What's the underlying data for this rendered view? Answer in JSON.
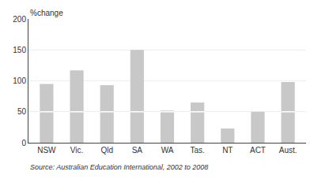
{
  "chart_data": {
    "type": "bar",
    "categories": [
      "NSW",
      "Vic.",
      "Qld",
      "SA",
      "WA",
      "Tas.",
      "NT",
      "ACT",
      "Aust."
    ],
    "values": [
      95,
      117,
      93,
      150,
      52,
      65,
      23,
      50,
      98
    ],
    "lower_segment": [
      50,
      50,
      50,
      50,
      50,
      50,
      23,
      50,
      50
    ],
    "color": "#c8c8c8",
    "line_color": "#ffffff",
    "ylabel": "%change",
    "annotations": [
      "Source: Australian Education International, 2002 to 2008"
    ],
    "ylim": [
      0,
      200
    ],
    "yticks": [
      0,
      50,
      100,
      150,
      200
    ],
    "grid": true
  }
}
